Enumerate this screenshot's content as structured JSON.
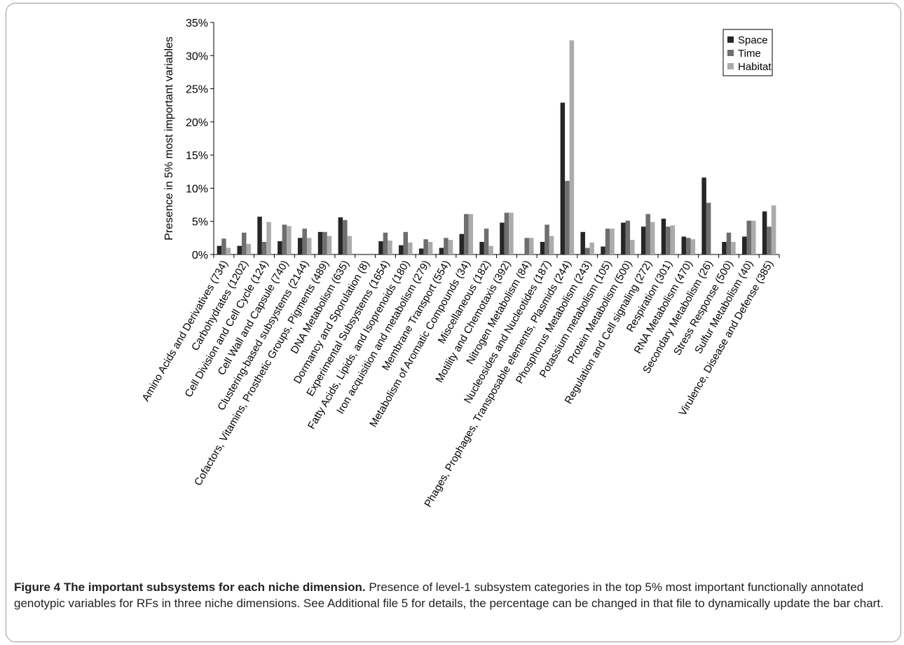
{
  "caption": {
    "title": "Figure 4 The important subsystems for each niche dimension.",
    "text": "Presence of level-1 subsystem categories in the top 5% most important functionally annotated genotypic variables for RFs in three niche dimensions. See Additional file 5 for details, the percentage can be changed in that file to dynamically update the bar chart."
  },
  "chart_data": {
    "type": "bar",
    "title": "",
    "xlabel": "",
    "ylabel": "Presence in 5% most important variables",
    "ylim": [
      0,
      35
    ],
    "yticks": [
      "0%",
      "5%",
      "10%",
      "15%",
      "20%",
      "25%",
      "30%",
      "35%"
    ],
    "grid": false,
    "legend_position": "top-right",
    "categories": [
      "Amino Acids and Derivatives (734)",
      "Carbohydrates (1202)",
      "Cell Division and Cell Cycle (124)",
      "Cell Wall and Capsule (740)",
      "Clustering-based subsystems (2144)",
      "Cofactors, Vitamins, Prosthetic Groups, Pigments (489)",
      "DNA Metabolism (635)",
      "Dormancy and Sporulation (8)",
      "Experimental Subsystems (1654)",
      "Fatty Acids, Lipids, and Isoprenoids (180)",
      "Iron acquisition and metabolism (279)",
      "Membrane Transport (554)",
      "Metabolism of Aromatic Compounds (34)",
      "Miscellaneous (182)",
      "Motility and Chemotaxis (392)",
      "Nitrogen Metabolism (84)",
      "Nucleosides and Nucleotides (187)",
      "Phages, Prophages, Transposable elements, Plasmids (244)",
      "Phosphorus Metabolism (243)",
      "Potassium metabolism (105)",
      "Protein Metabolism (500)",
      "Regulation and Cell signaling (272)",
      "Respiration (301)",
      "RNA Metabolism (470)",
      "Secondary Metabolism (26)",
      "Stress Response (500)",
      "Sulfur Metabolism (40)",
      "Virulence, Disease and Defense (385)"
    ],
    "series": [
      {
        "name": "Space",
        "color": "#262626",
        "values": [
          1.3,
          1.3,
          5.7,
          2.0,
          2.5,
          3.4,
          5.6,
          0,
          2.0,
          1.4,
          0.9,
          1.0,
          3.1,
          1.9,
          4.8,
          0,
          1.9,
          22.9,
          3.4,
          1.2,
          4.8,
          4.2,
          5.4,
          2.7,
          11.6,
          1.9,
          2.7,
          6.5
        ]
      },
      {
        "name": "Time",
        "color": "#6e6e6e",
        "values": [
          2.4,
          3.3,
          1.9,
          4.5,
          3.9,
          3.4,
          5.2,
          0,
          3.3,
          3.4,
          2.3,
          2.5,
          6.1,
          3.9,
          6.3,
          2.5,
          4.5,
          11.1,
          1.0,
          3.9,
          5.1,
          6.1,
          4.2,
          2.5,
          7.8,
          3.3,
          5.1,
          4.2
        ]
      },
      {
        "name": "Habitat",
        "color": "#ababab",
        "values": [
          1.0,
          1.6,
          4.9,
          4.3,
          2.5,
          2.8,
          2.8,
          0,
          2.1,
          1.8,
          1.9,
          2.2,
          6.1,
          1.3,
          6.3,
          2.5,
          2.8,
          32.3,
          1.8,
          3.9,
          2.2,
          4.9,
          4.4,
          2.3,
          0,
          1.9,
          5.1,
          7.4
        ]
      }
    ]
  }
}
